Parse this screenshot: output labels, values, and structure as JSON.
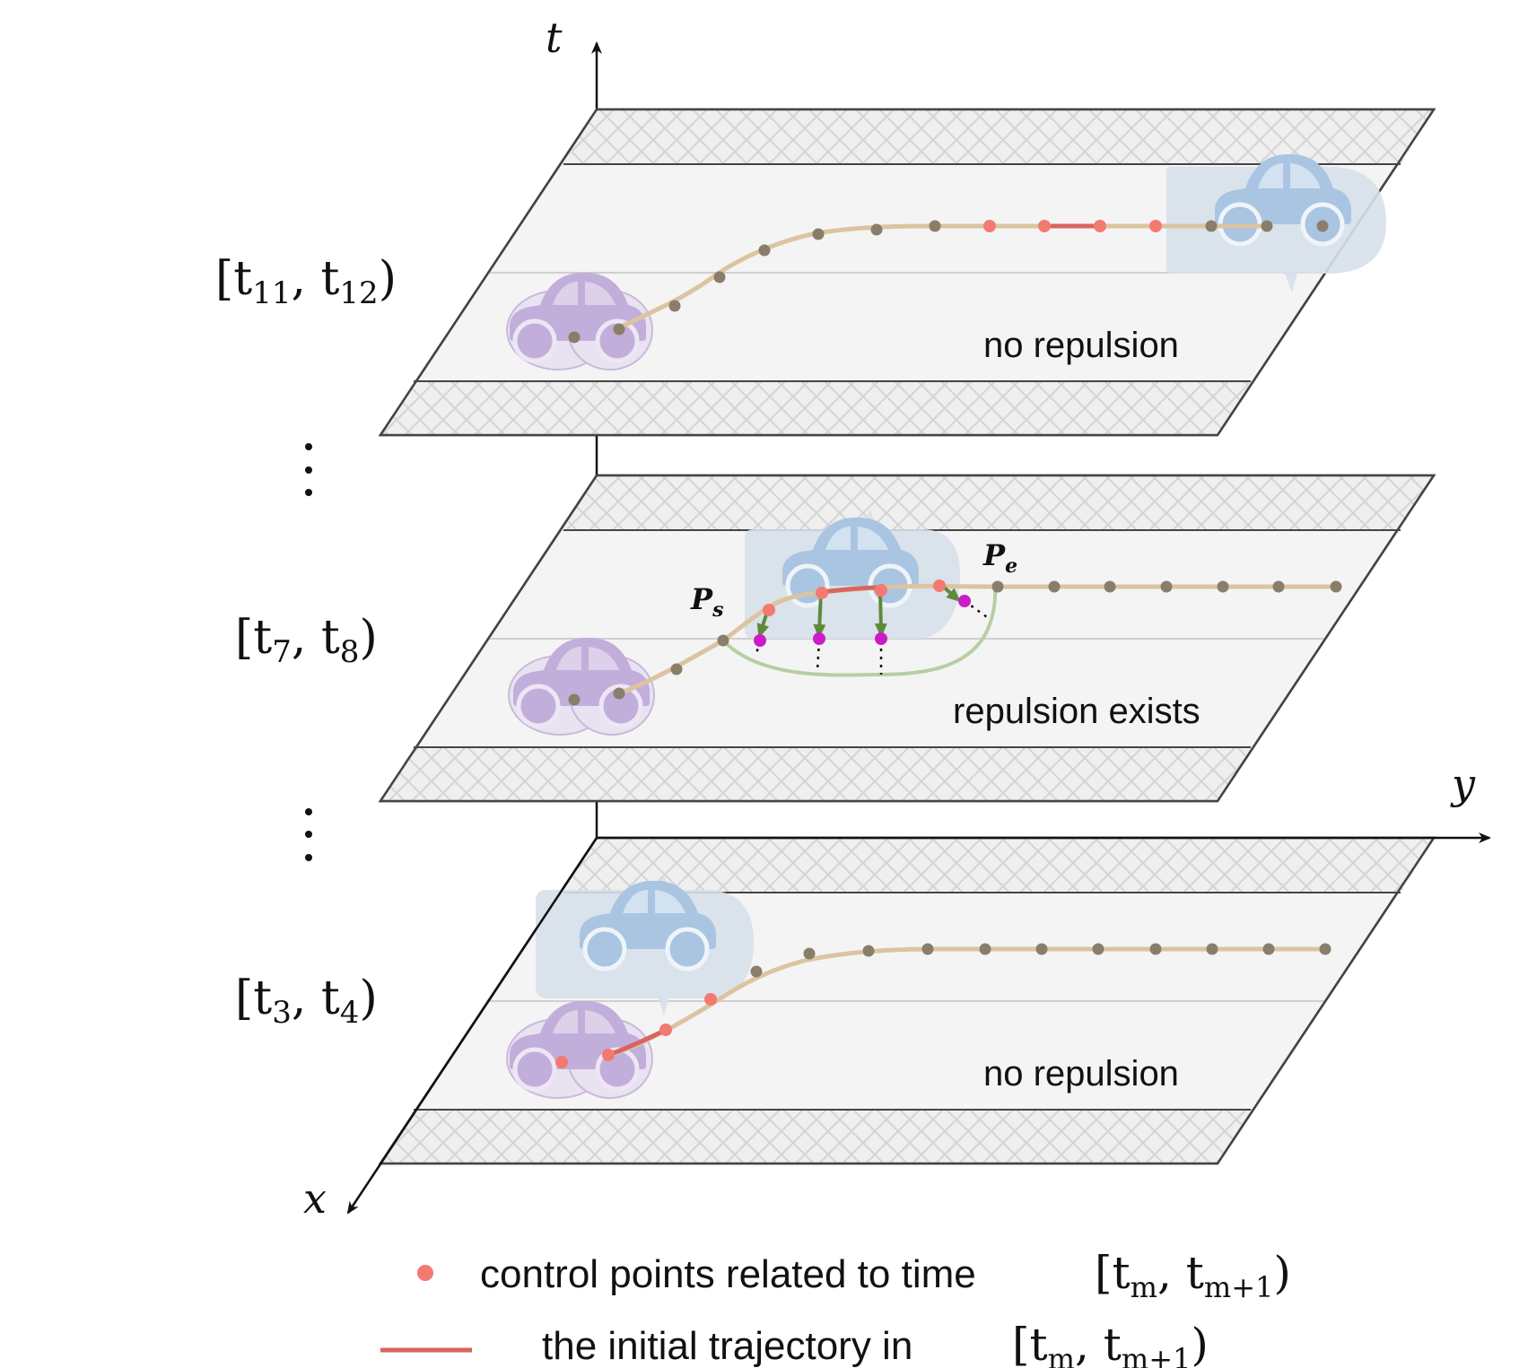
{
  "axes": {
    "t": "t",
    "x": "x",
    "y": "y"
  },
  "layers": [
    {
      "interval_main": "[t",
      "interval_sub1": "11",
      "interval_mid": ", t",
      "interval_sub2": "12",
      "interval_end": ")",
      "label": "no repulsion"
    },
    {
      "interval_main": "[t",
      "interval_sub1": "7",
      "interval_mid": ", t",
      "interval_sub2": "8",
      "interval_end": ")",
      "label": "repulsion exists",
      "ps": "P",
      "ps_sub": "s",
      "pe": "P",
      "pe_sub": "e"
    },
    {
      "interval_main": "[t",
      "interval_sub1": "3",
      "interval_mid": ", t",
      "interval_sub2": "4",
      "interval_end": ")",
      "label": "no repulsion"
    }
  ],
  "legend": {
    "dot_text": "control points related to time",
    "line_text": "the initial trajectory in",
    "interval_main": "[t",
    "interval_sub1": "m",
    "interval_mid": ", t",
    "interval_sub2": "m+1",
    "interval_end": ")"
  },
  "colors": {
    "plane_stroke": "#444444",
    "lane_fill": "#f4f4f4",
    "hatch": "#d6d6d6",
    "trajectory": "#dcc4a0",
    "dot_gray": "#8a7e6a",
    "dot_red": "#f37a70",
    "segment_red": "#d9645e",
    "car_purple": "#c2aedb",
    "car_blue": "#a9c5e1",
    "repulsion_arrow": "#5e8a3b",
    "repulsion_point": "#cc1cc8",
    "alt_path": "#b7cfa0"
  }
}
